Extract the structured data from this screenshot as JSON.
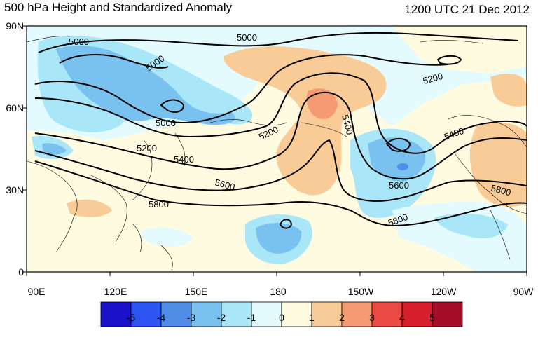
{
  "title": "500 hPa Height and Standardized Anomaly",
  "timestamp": "1200 UTC 21 Dec 2012",
  "lat_labels": [
    "90N",
    "60N",
    "30N",
    "0"
  ],
  "lon_labels": [
    "90E",
    "120E",
    "150E",
    "180",
    "150W",
    "120W",
    "90W"
  ],
  "contour_labels": [
    "5000",
    "5000",
    "5000",
    "5000",
    "5200",
    "5200",
    "5200",
    "5400",
    "5400",
    "5400",
    "5600",
    "5600",
    "5800",
    "5800",
    "5800"
  ],
  "colorbar": {
    "labels": [
      "-5",
      "-4",
      "-3",
      "-2",
      "-1",
      "0",
      "1",
      "2",
      "3",
      "4",
      "5"
    ],
    "colors": [
      "#1a12c8",
      "#2b54f0",
      "#4f8de6",
      "#79c2f0",
      "#a9e6f8",
      "#e3fbff",
      "#fffbe0",
      "#f9cb96",
      "#f59a72",
      "#ea4a44",
      "#d61f2c",
      "#a40e28"
    ]
  },
  "anomaly_colors": {
    "strong_negative": "#79c2f0",
    "negative": "#a9e6f8",
    "weak_negative": "#e3fbff",
    "weak_positive": "#fffbe0",
    "positive": "#f9cb96",
    "strong_positive": "#f59a72",
    "extreme_negative": "#2b54f0"
  }
}
